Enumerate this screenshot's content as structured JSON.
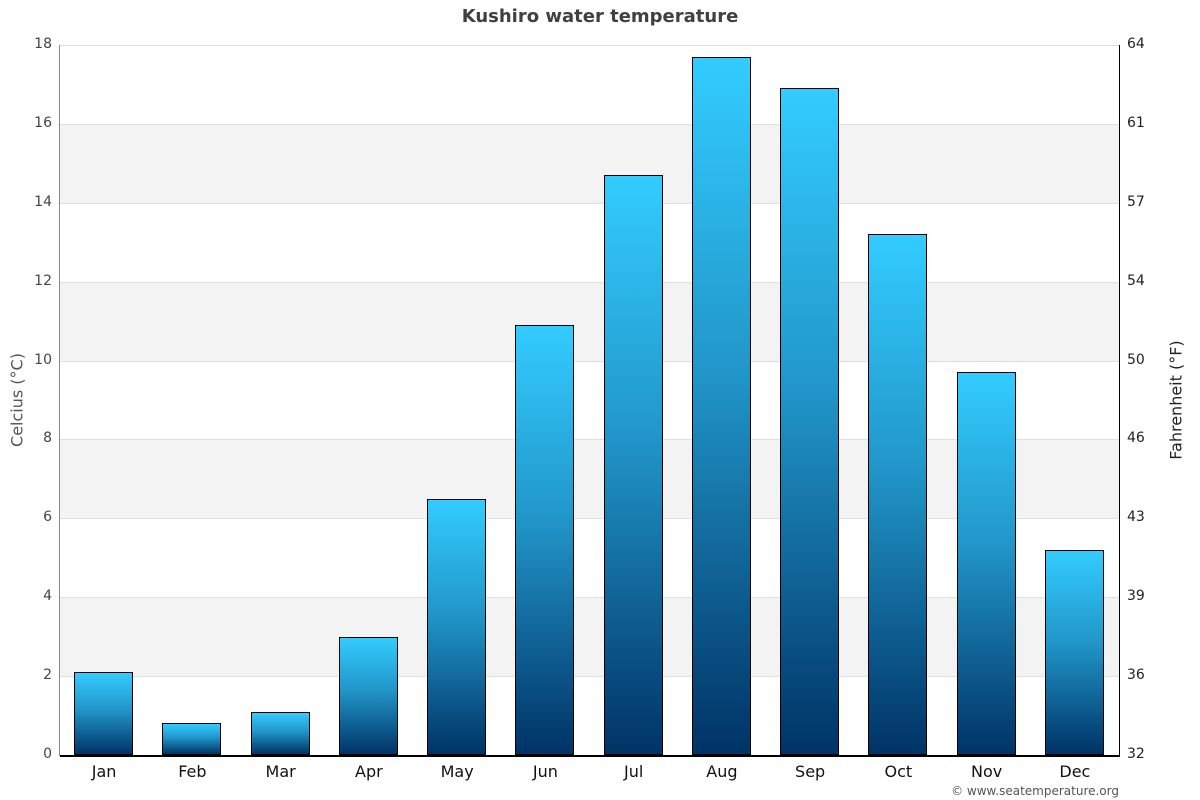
{
  "title": "Kushiro water temperature",
  "y_left_label": "Celcius (°C)",
  "y_right_label": "Fahrenheit (°F)",
  "credit": "© www.seatemperature.org",
  "y_left_ticks": [
    "0",
    "2",
    "4",
    "6",
    "8",
    "10",
    "12",
    "14",
    "16",
    "18"
  ],
  "y_right_ticks": [
    "32",
    "36",
    "39",
    "43",
    "46",
    "50",
    "54",
    "57",
    "61",
    "64"
  ],
  "colors": {
    "bar_top": "#33ccff",
    "bar_bottom": "#003366",
    "band": "#f3f3f3",
    "grid": "#e0e0e0"
  },
  "chart_data": {
    "type": "bar",
    "title": "Kushiro water temperature",
    "xlabel": "",
    "ylabel": "Celcius (°C)",
    "ylabel_right": "Fahrenheit (°F)",
    "ylim": [
      0,
      18
    ],
    "ylim_right": [
      32,
      64
    ],
    "grid": true,
    "legend": null,
    "categories": [
      "Jan",
      "Feb",
      "Mar",
      "Apr",
      "May",
      "Jun",
      "Jul",
      "Aug",
      "Sep",
      "Oct",
      "Nov",
      "Dec"
    ],
    "values": [
      2.1,
      0.8,
      1.1,
      3.0,
      6.5,
      10.9,
      14.7,
      17.7,
      16.9,
      13.2,
      9.7,
      5.2
    ]
  }
}
